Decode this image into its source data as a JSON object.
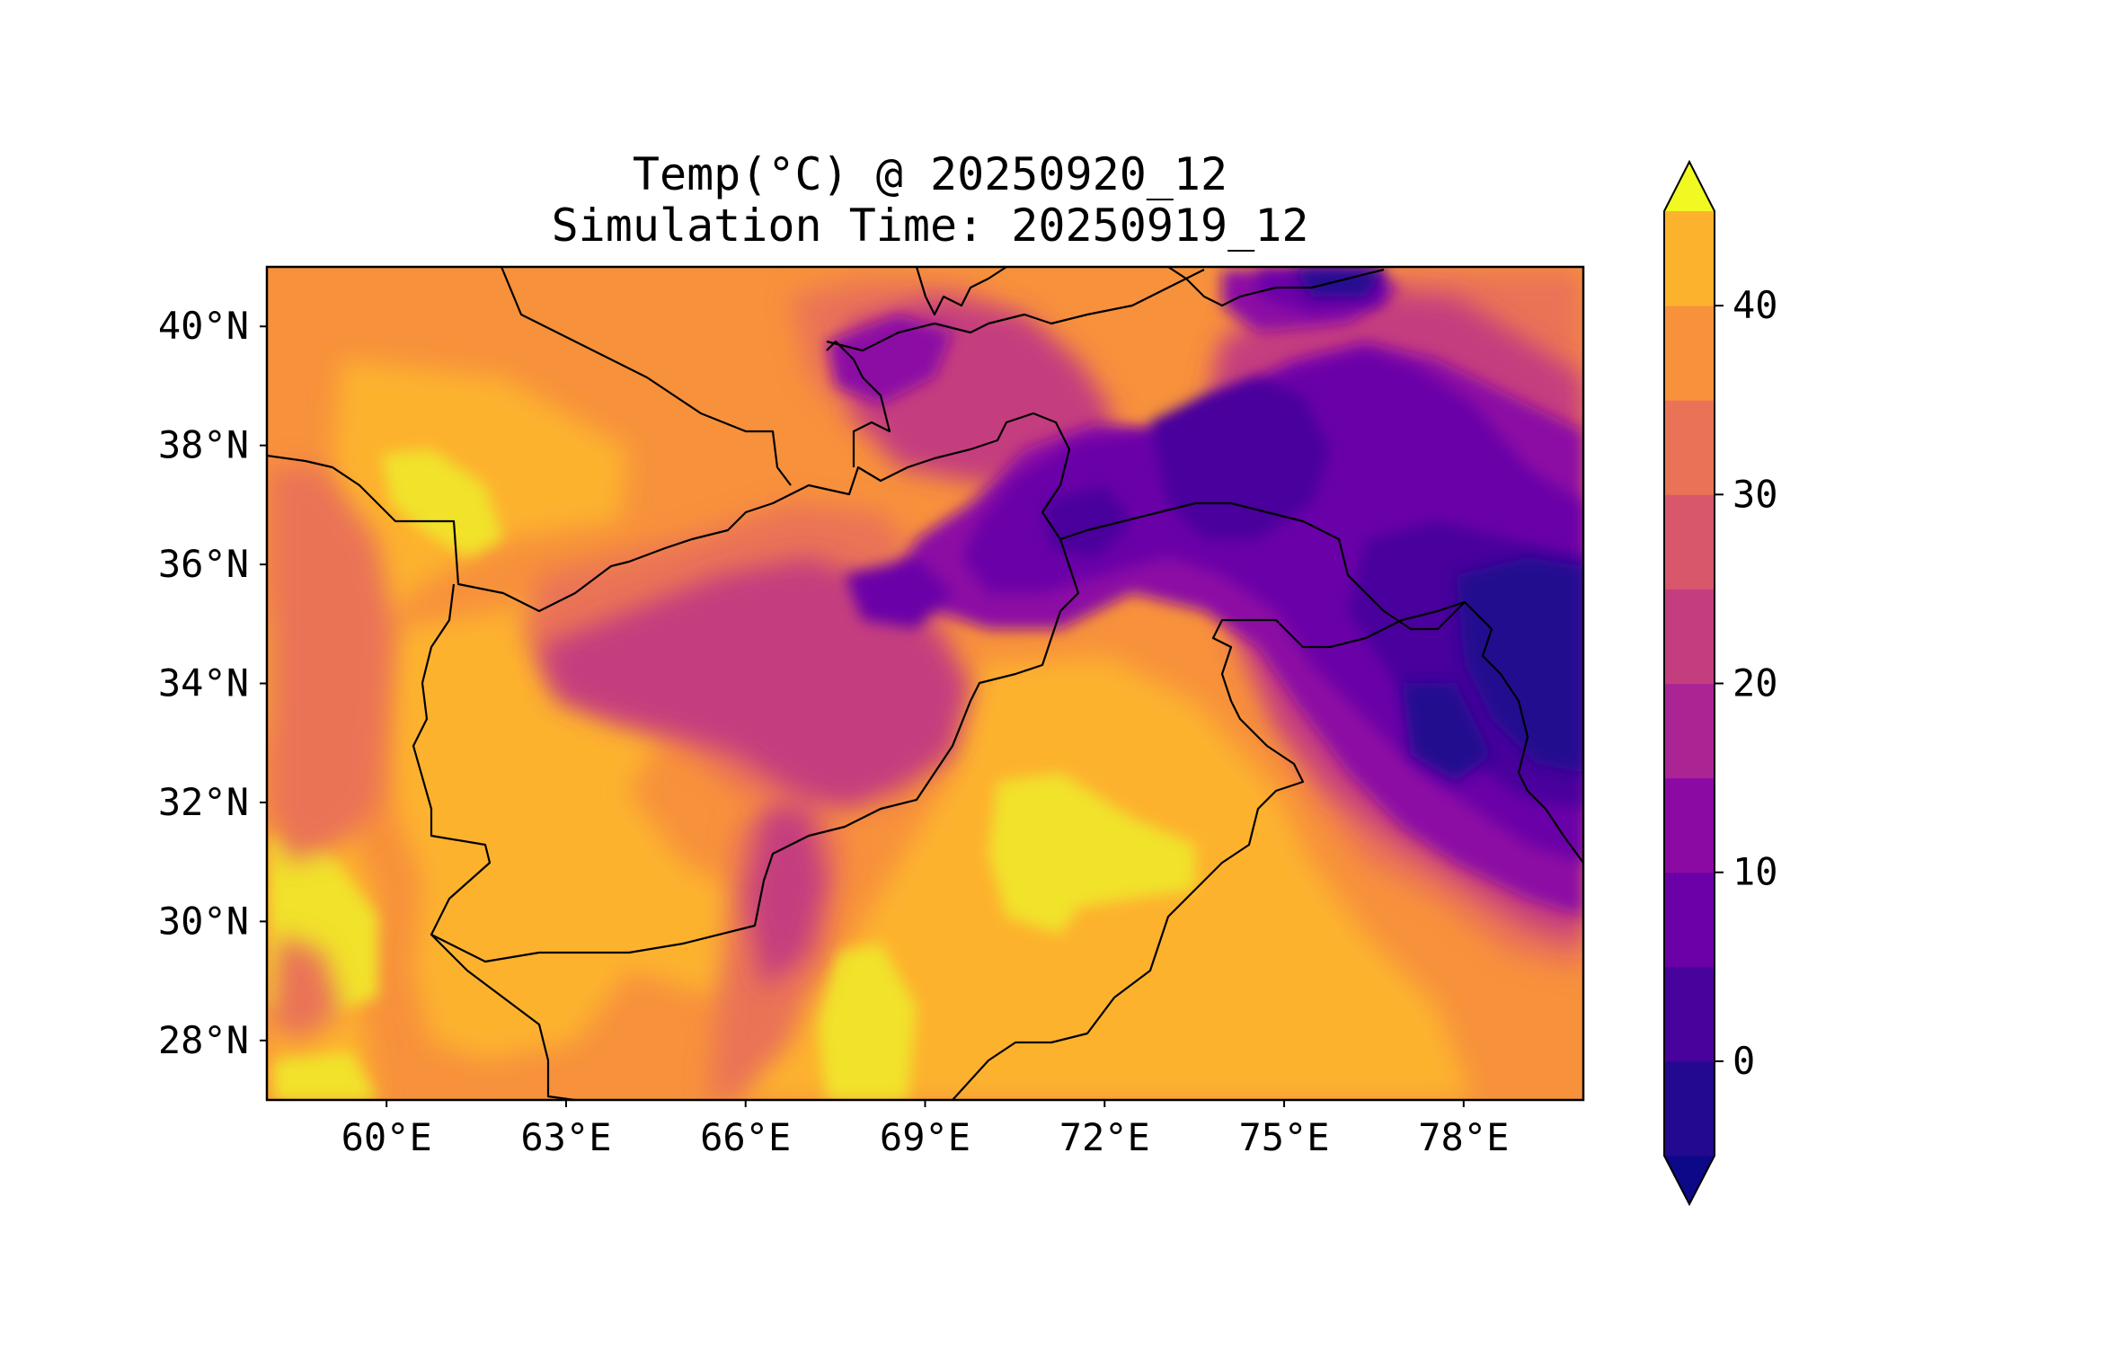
{
  "title": {
    "line1": "Temp(°C) @ 20250920_12",
    "line2": "Simulation Time: 20250919_12"
  },
  "map": {
    "lon_range": [
      58,
      80
    ],
    "lat_range": [
      27,
      41
    ],
    "x_ticks": [
      {
        "lon": 60,
        "label": "60°E"
      },
      {
        "lon": 63,
        "label": "63°E"
      },
      {
        "lon": 66,
        "label": "66°E"
      },
      {
        "lon": 69,
        "label": "69°E"
      },
      {
        "lon": 72,
        "label": "72°E"
      },
      {
        "lon": 75,
        "label": "75°E"
      },
      {
        "lon": 78,
        "label": "78°E"
      }
    ],
    "y_ticks": [
      {
        "lat": 40,
        "label": "40°N"
      },
      {
        "lat": 38,
        "label": "38°N"
      },
      {
        "lat": 36,
        "label": "36°N"
      },
      {
        "lat": 34,
        "label": "34°N"
      },
      {
        "lat": 32,
        "label": "32°N"
      },
      {
        "lat": 30,
        "label": "30°N"
      },
      {
        "lat": 28,
        "label": "28°N"
      }
    ],
    "background_color": "#f7913c",
    "border_color": "#000000"
  },
  "colorbar": {
    "levels": [
      -5,
      0,
      5,
      10,
      15,
      20,
      25,
      30,
      35,
      40,
      45
    ],
    "colors": [
      "#23098f",
      "#48039c",
      "#6b00a8",
      "#8c0aa4",
      "#ab2494",
      "#c43e7f",
      "#d8576b",
      "#ea7357",
      "#f7913c",
      "#fdb22e",
      "#f1e22c"
    ],
    "under_color": "#0d0887",
    "over_color": "#f0f921",
    "tick_values": [
      0,
      10,
      20,
      30,
      40
    ],
    "tick_labels": [
      "0",
      "10",
      "20",
      "30",
      "40"
    ],
    "extend": "both"
  }
}
